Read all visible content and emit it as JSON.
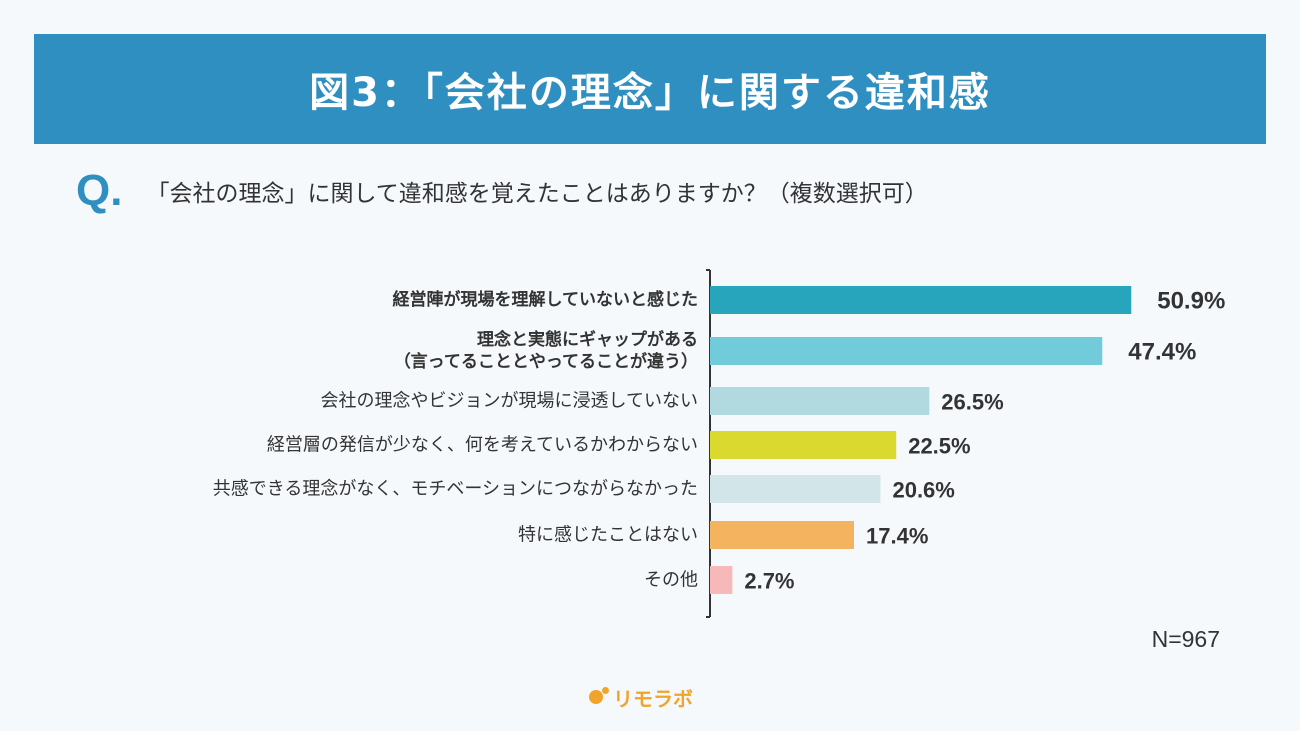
{
  "header": {
    "title": "図3：「会社の理念」に関する違和感"
  },
  "question": {
    "mark": "Q",
    "dot": ".",
    "text": "「会社の理念」に関して違和感を覚えたことはありますか？（複数選択可）"
  },
  "sample_size": "N=967",
  "brand": {
    "name": "リモラボ",
    "color": "#f0a42a"
  },
  "chart_data": {
    "type": "bar",
    "orientation": "horizontal",
    "categories": [
      [
        "経営陣が現場を理解していないと感じた"
      ],
      [
        "理念と実態にギャップがある",
        "（言ってることとやってることが違う）"
      ],
      [
        "会社の理念やビジョンが現場に浸透していない"
      ],
      [
        "経営層の発信が少なく、何を考えているかわからない"
      ],
      [
        "共感できる理念がなく、モチベーションにつながらなかった"
      ],
      [
        "特に感じたことはない"
      ],
      [
        "その他"
      ]
    ],
    "values": [
      50.9,
      47.4,
      26.5,
      22.5,
      20.6,
      17.4,
      2.7
    ],
    "value_labels": [
      "50.9%",
      "47.4%",
      "26.5%",
      "22.5%",
      "20.6%",
      "17.4%",
      "2.7%"
    ],
    "bold": [
      true,
      true,
      false,
      false,
      false,
      false,
      false
    ],
    "colors": [
      "#27a5bd",
      "#72cbdb",
      "#b0d9e0",
      "#d9d930",
      "#d2e6ea",
      "#f4b35f",
      "#f6b8b8"
    ],
    "xlim": [
      0,
      58
    ],
    "title": "",
    "xlabel": "",
    "ylabel": "",
    "grid": false,
    "legend": "none"
  }
}
